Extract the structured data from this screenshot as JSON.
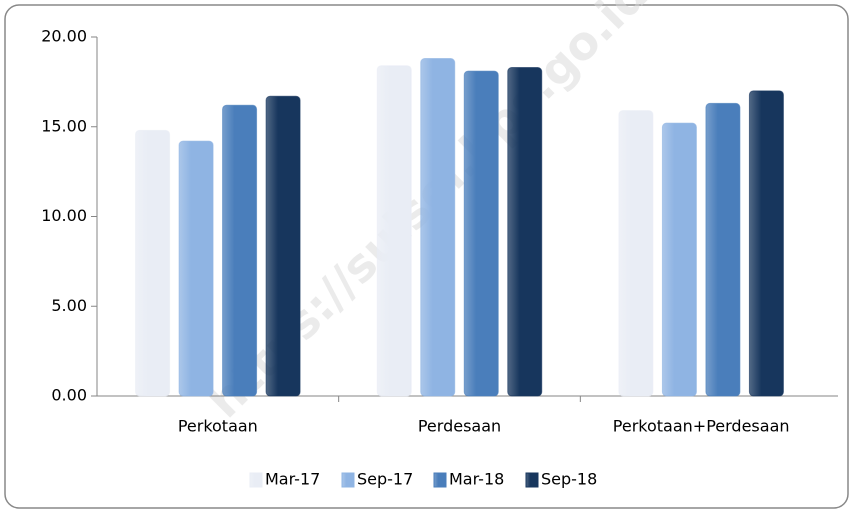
{
  "chart_data": {
    "type": "bar",
    "watermark": "https://sulsel.bps.go.id",
    "categories": [
      "Perkotaan",
      "Perdesaan",
      "Perkotaan+Perdesaan"
    ],
    "series": [
      {
        "name": "Mar-17",
        "color": "#e9edf5",
        "values": [
          14.8,
          18.4,
          15.9
        ]
      },
      {
        "name": "Sep-17",
        "color": "#8fb4e3",
        "values": [
          14.2,
          18.8,
          15.2
        ]
      },
      {
        "name": "Mar-18",
        "color": "#4a7ebb",
        "values": [
          16.2,
          18.1,
          16.3
        ]
      },
      {
        "name": "Sep-18",
        "color": "#17365d",
        "values": [
          16.7,
          18.3,
          17.0
        ]
      }
    ],
    "ylim": [
      0,
      20
    ],
    "yticks": [
      {
        "value": 0,
        "label": "0.00"
      },
      {
        "value": 5,
        "label": "5.00"
      },
      {
        "value": 10,
        "label": "10.00"
      },
      {
        "value": 15,
        "label": "15.00"
      },
      {
        "value": 20,
        "label": "20.00"
      }
    ],
    "grid": false,
    "legend": "bottom"
  }
}
